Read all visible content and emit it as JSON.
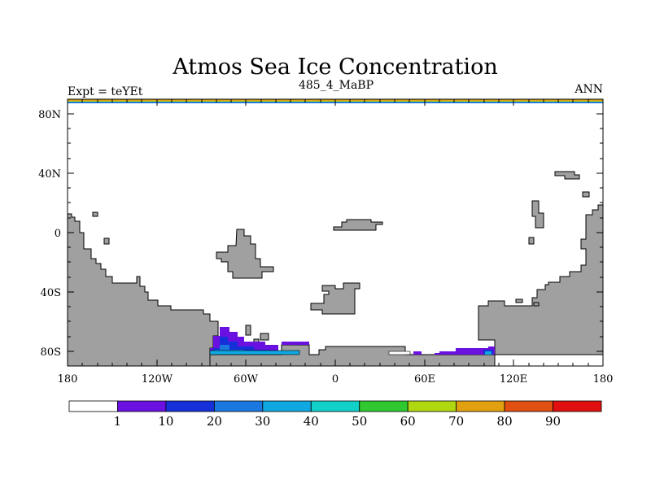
{
  "title": "Atmos Sea Ice Concentration",
  "subtitle_left": "Expt = teYEt",
  "subtitle_center": "485_4_MaBP",
  "subtitle_right": "ANN",
  "x_tick_labels": [
    "180",
    "120W",
    "60W",
    "0",
    "60E",
    "120E",
    "180"
  ],
  "y_tick_labels": [
    "80N",
    "40N",
    "0",
    "40S",
    "80S"
  ],
  "colorbar": {
    "labels": [
      "1",
      "10",
      "20",
      "30",
      "40",
      "50",
      "60",
      "70",
      "80",
      "90"
    ],
    "colors": [
      "#ffffff",
      "#6a10e0",
      "#1530d8",
      "#1a78e0",
      "#10a8e0",
      "#10d0c8",
      "#30c830",
      "#b0d810",
      "#e0a010",
      "#e05010",
      "#e01010"
    ]
  },
  "chart_data": {
    "type": "heatmap",
    "title": "Atmos Sea Ice Concentration",
    "subtitle": "485_4_MaBP",
    "variable": "sea ice concentration (%)",
    "experiment": "teYEt",
    "season": "ANN",
    "xlim": [
      -180,
      180
    ],
    "ylim": [
      -90,
      90
    ],
    "x_ticks": [
      -180,
      -120,
      -60,
      0,
      60,
      120,
      180
    ],
    "y_ticks": [
      80,
      40,
      0,
      -40,
      -80
    ],
    "contour_levels": [
      1,
      10,
      20,
      30,
      40,
      50,
      60,
      70,
      80,
      90
    ],
    "land_color": "#a0a0a0"
  }
}
